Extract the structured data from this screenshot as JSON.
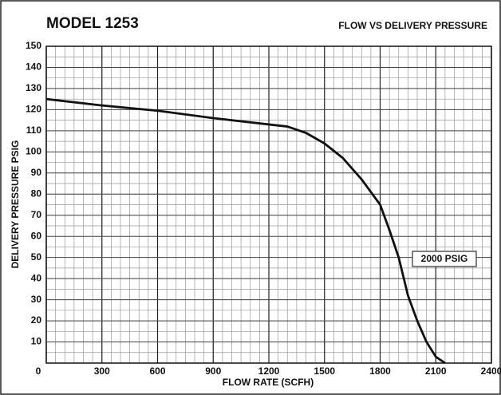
{
  "chart_data": {
    "type": "line",
    "title": "MODEL 1253",
    "subtitle": "FLOW VS DELIVERY PRESSURE",
    "x_label": "FLOW RATE (SCFH)",
    "y_label": "DELIVERY PRESSURE PSIG",
    "x": [
      0,
      300,
      600,
      900,
      1200,
      1300,
      1400,
      1500,
      1600,
      1700,
      1800,
      1850,
      1900,
      1950,
      2000,
      2050,
      2100,
      2150
    ],
    "series": [
      {
        "name": "2000 PSIG",
        "color": "#111111",
        "values": [
          125,
          122,
          119.5,
          116,
          113,
          112,
          109,
          104,
          97,
          87,
          75,
          63,
          50,
          32,
          20,
          10,
          3,
          0
        ]
      }
    ],
    "xlim": [
      0,
      2400
    ],
    "xticks": [
      0,
      300,
      600,
      900,
      1200,
      1500,
      1800,
      2100,
      2400
    ],
    "ylim": [
      0,
      150
    ],
    "yticks": [
      10,
      20,
      30,
      40,
      50,
      60,
      70,
      80,
      90,
      100,
      110,
      120,
      130,
      140,
      150
    ],
    "grid": true
  }
}
